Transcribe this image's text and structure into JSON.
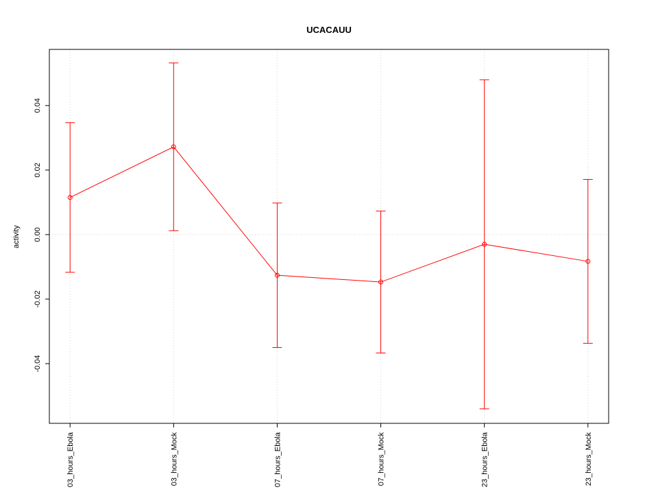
{
  "chart_data": {
    "type": "line",
    "title": "UCACAUU",
    "ylabel": "activity",
    "categories": [
      "03_hours_Ebola",
      "03_hours_Mock",
      "07_hours_Ebola",
      "07_hours_Mock",
      "23_hours_Ebola",
      "23_hours_Mock"
    ],
    "series": [
      {
        "name": "activity",
        "color": "#ff0000",
        "values": [
          0.0115,
          0.0272,
          -0.0126,
          -0.0147,
          -0.003,
          -0.0083
        ],
        "errors": [
          0.0232,
          0.026,
          0.0224,
          0.022,
          0.051,
          0.0254
        ]
      }
    ],
    "ylim": [
      -0.0585,
      0.0574
    ],
    "yticks": [
      -0.04,
      -0.02,
      {
        "value": 0,
        "label": "0.00"
      },
      0.02,
      0.04
    ],
    "hline": 0,
    "grid": true
  }
}
